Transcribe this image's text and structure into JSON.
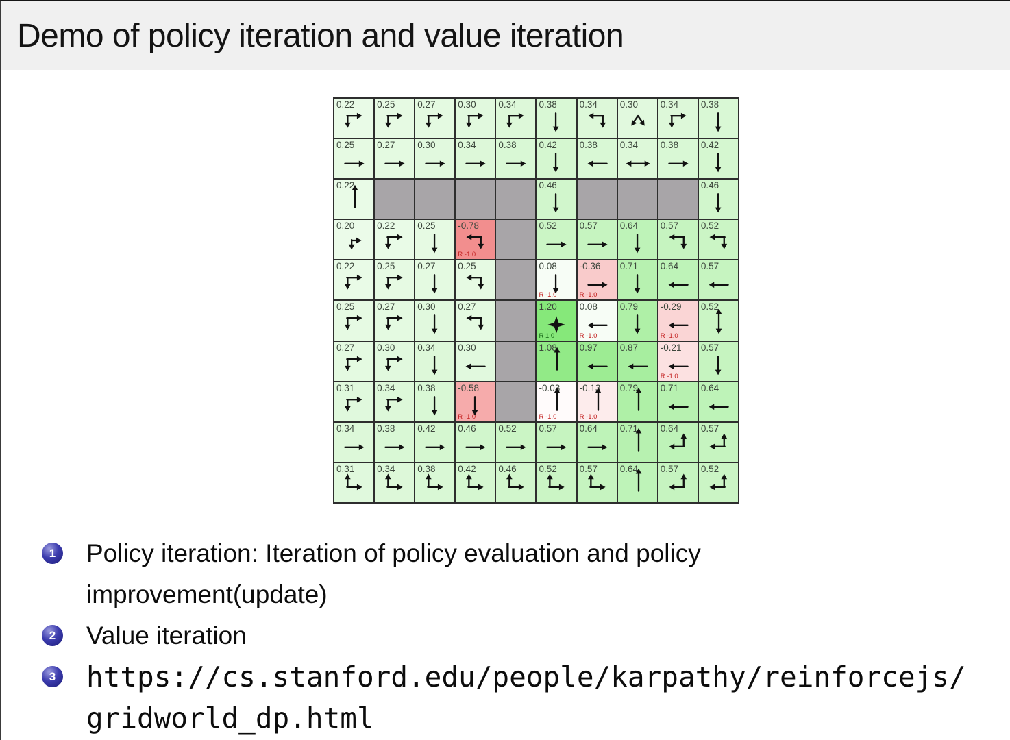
{
  "slide": {
    "title": "Demo of policy iteration and value iteration",
    "items": [
      {
        "number": "1",
        "lines": [
          "Policy iteration: Iteration of policy evaluation and policy",
          "improvement(update)"
        ]
      },
      {
        "number": "2",
        "lines": [
          "Value iteration"
        ]
      },
      {
        "number": "3",
        "lines": [
          "https://cs.stanford.edu/people/karpathy/reinforcejs/",
          "gridworld_dp.html"
        ]
      }
    ]
  },
  "colors": {
    "title_bar_bg": "#f0f0f0",
    "body_bg": "#ffffff",
    "wall": "#a8a5a8",
    "positive_base": "#86e87a",
    "negative_base": "#f28b8b",
    "grid_border": "#2e2e2e",
    "value_text": "#3d473d",
    "reward_negative": "#c42222",
    "reward_positive": "#156615",
    "bullet_ball": "#28288c",
    "arrow": "#111111"
  },
  "gridworld": {
    "rows": 10,
    "cols": 10,
    "positive_scale": 1.2,
    "negative_scale": 0.8,
    "cells": [
      [
        {
          "v": "0.22",
          "a": "DR"
        },
        {
          "v": "0.25",
          "a": "DR"
        },
        {
          "v": "0.27",
          "a": "DR"
        },
        {
          "v": "0.30",
          "a": "DR"
        },
        {
          "v": "0.34",
          "a": "DR"
        },
        {
          "v": "0.38",
          "a": "D"
        },
        {
          "v": "0.34",
          "a": "LD"
        },
        {
          "v": "0.30",
          "a": "DD"
        },
        {
          "v": "0.34",
          "a": "DR"
        },
        {
          "v": "0.38",
          "a": "D"
        }
      ],
      [
        {
          "v": "0.25",
          "a": "R"
        },
        {
          "v": "0.27",
          "a": "R"
        },
        {
          "v": "0.30",
          "a": "R"
        },
        {
          "v": "0.34",
          "a": "R"
        },
        {
          "v": "0.38",
          "a": "R"
        },
        {
          "v": "0.42",
          "a": "D"
        },
        {
          "v": "0.38",
          "a": "L"
        },
        {
          "v": "0.34",
          "a": "LR"
        },
        {
          "v": "0.38",
          "a": "R"
        },
        {
          "v": "0.42",
          "a": "D"
        }
      ],
      [
        {
          "v": "0.22",
          "a": "U"
        },
        {
          "wall": true
        },
        {
          "wall": true
        },
        {
          "wall": true
        },
        {
          "wall": true
        },
        {
          "v": "0.46",
          "a": "D"
        },
        {
          "wall": true
        },
        {
          "wall": true
        },
        {
          "wall": true
        },
        {
          "v": "0.46",
          "a": "D"
        }
      ],
      [
        {
          "v": "0.20",
          "a": "RD"
        },
        {
          "v": "0.22",
          "a": "DR"
        },
        {
          "v": "0.25",
          "a": "D"
        },
        {
          "v": "-0.78",
          "a": "LD",
          "r": "R -1.0"
        },
        {
          "wall": true
        },
        {
          "v": "0.52",
          "a": "R"
        },
        {
          "v": "0.57",
          "a": "R"
        },
        {
          "v": "0.64",
          "a": "D"
        },
        {
          "v": "0.57",
          "a": "LD"
        },
        {
          "v": "0.52",
          "a": "LD"
        }
      ],
      [
        {
          "v": "0.22",
          "a": "DR"
        },
        {
          "v": "0.25",
          "a": "DR"
        },
        {
          "v": "0.27",
          "a": "D"
        },
        {
          "v": "0.25",
          "a": "LD"
        },
        {
          "wall": true
        },
        {
          "v": "0.08",
          "a": "D",
          "r": "R -1.0"
        },
        {
          "v": "-0.36",
          "a": "R",
          "r": "R -1.0"
        },
        {
          "v": "0.71",
          "a": "D"
        },
        {
          "v": "0.64",
          "a": "L"
        },
        {
          "v": "0.57",
          "a": "L"
        }
      ],
      [
        {
          "v": "0.25",
          "a": "DR"
        },
        {
          "v": "0.27",
          "a": "DR"
        },
        {
          "v": "0.30",
          "a": "D"
        },
        {
          "v": "0.27",
          "a": "LD"
        },
        {
          "wall": true
        },
        {
          "v": "1.20",
          "a": "STAR",
          "r": "R 1.0"
        },
        {
          "v": "0.08",
          "a": "L",
          "r": "R -1.0"
        },
        {
          "v": "0.79",
          "a": "D"
        },
        {
          "v": "-0.29",
          "a": "L",
          "r": "R -1.0"
        },
        {
          "v": "0.52",
          "a": "UD"
        }
      ],
      [
        {
          "v": "0.27",
          "a": "DR"
        },
        {
          "v": "0.30",
          "a": "DR"
        },
        {
          "v": "0.34",
          "a": "D"
        },
        {
          "v": "0.30",
          "a": "L"
        },
        {
          "wall": true
        },
        {
          "v": "1.08",
          "a": "U"
        },
        {
          "v": "0.97",
          "a": "L"
        },
        {
          "v": "0.87",
          "a": "L"
        },
        {
          "v": "-0.21",
          "a": "L",
          "r": "R -1.0"
        },
        {
          "v": "0.57",
          "a": "D"
        }
      ],
      [
        {
          "v": "0.31",
          "a": "DR"
        },
        {
          "v": "0.34",
          "a": "DR"
        },
        {
          "v": "0.38",
          "a": "D"
        },
        {
          "v": "-0.58",
          "a": "D",
          "r": "R -1.0"
        },
        {
          "wall": true
        },
        {
          "v": "-0.03",
          "a": "U",
          "r": "R -1.0"
        },
        {
          "v": "-0.13",
          "a": "U",
          "r": "R -1.0"
        },
        {
          "v": "0.79",
          "a": "U"
        },
        {
          "v": "0.71",
          "a": "L"
        },
        {
          "v": "0.64",
          "a": "L"
        }
      ],
      [
        {
          "v": "0.34",
          "a": "R"
        },
        {
          "v": "0.38",
          "a": "R"
        },
        {
          "v": "0.42",
          "a": "R"
        },
        {
          "v": "0.46",
          "a": "R"
        },
        {
          "v": "0.52",
          "a": "R"
        },
        {
          "v": "0.57",
          "a": "R"
        },
        {
          "v": "0.64",
          "a": "R"
        },
        {
          "v": "0.71",
          "a": "U"
        },
        {
          "v": "0.64",
          "a": "UL"
        },
        {
          "v": "0.57",
          "a": "UL"
        }
      ],
      [
        {
          "v": "0.31",
          "a": "UR"
        },
        {
          "v": "0.34",
          "a": "UR"
        },
        {
          "v": "0.38",
          "a": "UR"
        },
        {
          "v": "0.42",
          "a": "UR"
        },
        {
          "v": "0.46",
          "a": "UR"
        },
        {
          "v": "0.52",
          "a": "UR"
        },
        {
          "v": "0.57",
          "a": "UR"
        },
        {
          "v": "0.64",
          "a": "U"
        },
        {
          "v": "0.57",
          "a": "UL"
        },
        {
          "v": "0.52",
          "a": "UL"
        }
      ]
    ]
  }
}
